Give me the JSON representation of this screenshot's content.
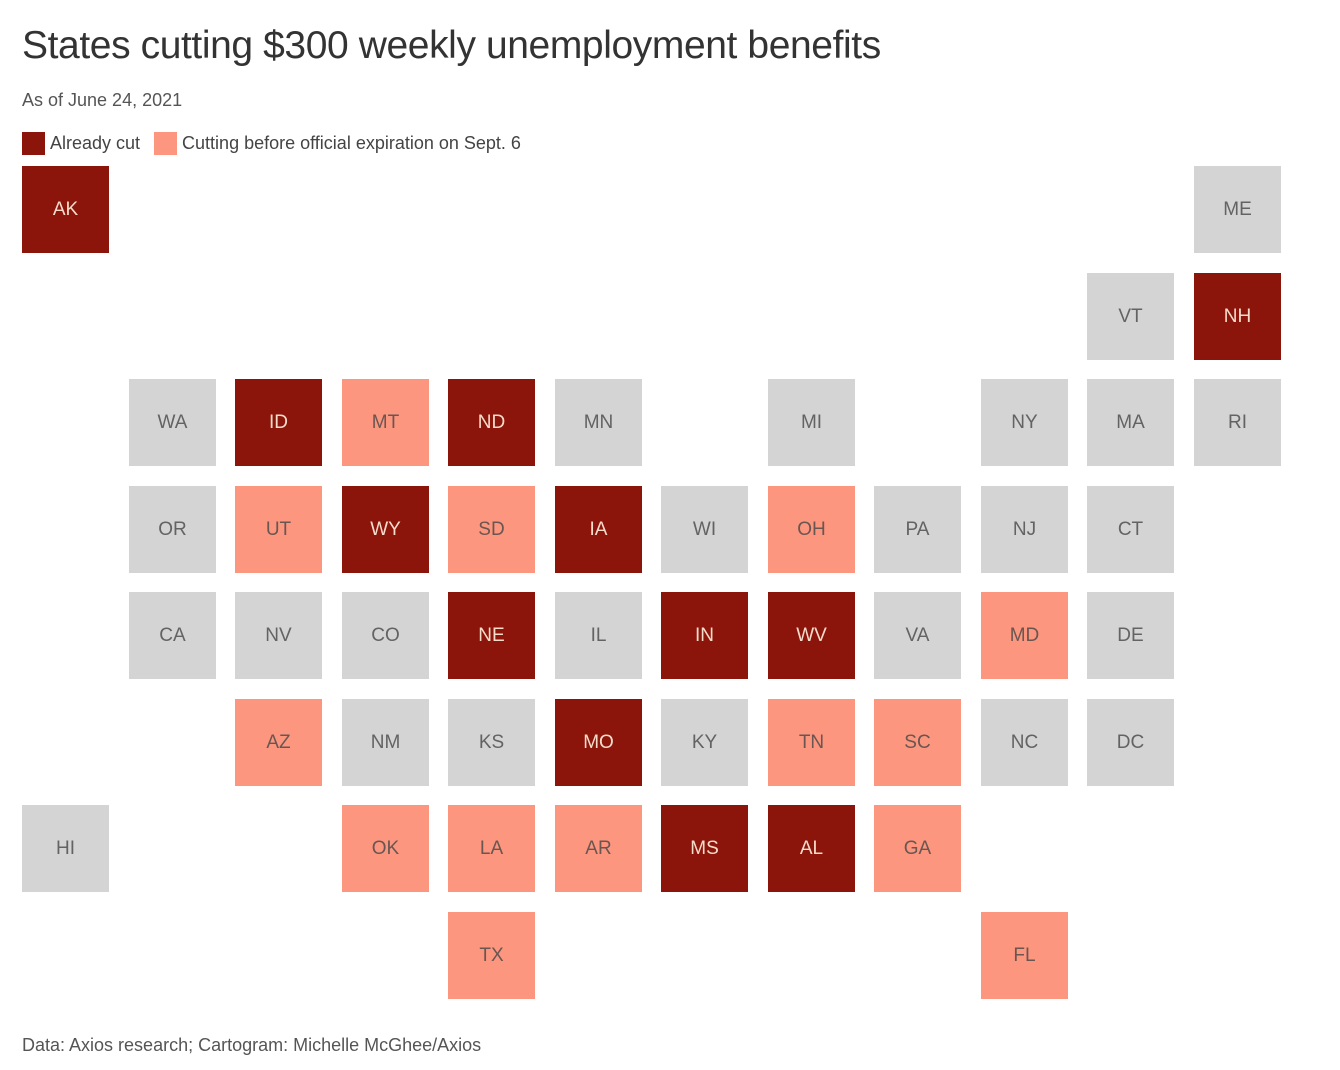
{
  "title": "States cutting $300 weekly unemployment benefits",
  "subtitle": "As of June 24, 2021",
  "legend": {
    "already_cut": {
      "label": "Already cut",
      "color": "#8b150b"
    },
    "cutting": {
      "label": "Cutting before official expiration on Sept. 6",
      "color": "#fc967f"
    },
    "no_change_color": "#d3d4d3"
  },
  "source": "Data: Axios research; Cartogram: Michelle McGhee/Axios",
  "map_data": {
    "type": "tile-cartogram",
    "status_values": {
      "cut": "Already cut",
      "cutting": "Cutting before official expiration on Sept. 6",
      "none": ""
    },
    "states": [
      {
        "abbr": "AK",
        "status": "cut",
        "row": 0,
        "col": 0
      },
      {
        "abbr": "ME",
        "status": "none",
        "row": 0,
        "col": 11
      },
      {
        "abbr": "VT",
        "status": "none",
        "row": 1,
        "col": 10
      },
      {
        "abbr": "NH",
        "status": "cut",
        "row": 1,
        "col": 11
      },
      {
        "abbr": "WA",
        "status": "none",
        "row": 2,
        "col": 1
      },
      {
        "abbr": "ID",
        "status": "cut",
        "row": 2,
        "col": 2
      },
      {
        "abbr": "MT",
        "status": "cutting",
        "row": 2,
        "col": 3
      },
      {
        "abbr": "ND",
        "status": "cut",
        "row": 2,
        "col": 4
      },
      {
        "abbr": "MN",
        "status": "none",
        "row": 2,
        "col": 5
      },
      {
        "abbr": "MI",
        "status": "none",
        "row": 2,
        "col": 7
      },
      {
        "abbr": "NY",
        "status": "none",
        "row": 2,
        "col": 9
      },
      {
        "abbr": "MA",
        "status": "none",
        "row": 2,
        "col": 10
      },
      {
        "abbr": "RI",
        "status": "none",
        "row": 2,
        "col": 11
      },
      {
        "abbr": "OR",
        "status": "none",
        "row": 3,
        "col": 1
      },
      {
        "abbr": "UT",
        "status": "cutting",
        "row": 3,
        "col": 2
      },
      {
        "abbr": "WY",
        "status": "cut",
        "row": 3,
        "col": 3
      },
      {
        "abbr": "SD",
        "status": "cutting",
        "row": 3,
        "col": 4
      },
      {
        "abbr": "IA",
        "status": "cut",
        "row": 3,
        "col": 5
      },
      {
        "abbr": "WI",
        "status": "none",
        "row": 3,
        "col": 6
      },
      {
        "abbr": "OH",
        "status": "cutting",
        "row": 3,
        "col": 7
      },
      {
        "abbr": "PA",
        "status": "none",
        "row": 3,
        "col": 8
      },
      {
        "abbr": "NJ",
        "status": "none",
        "row": 3,
        "col": 9
      },
      {
        "abbr": "CT",
        "status": "none",
        "row": 3,
        "col": 10
      },
      {
        "abbr": "CA",
        "status": "none",
        "row": 4,
        "col": 1
      },
      {
        "abbr": "NV",
        "status": "none",
        "row": 4,
        "col": 2
      },
      {
        "abbr": "CO",
        "status": "none",
        "row": 4,
        "col": 3
      },
      {
        "abbr": "NE",
        "status": "cut",
        "row": 4,
        "col": 4
      },
      {
        "abbr": "IL",
        "status": "none",
        "row": 4,
        "col": 5
      },
      {
        "abbr": "IN",
        "status": "cut",
        "row": 4,
        "col": 6
      },
      {
        "abbr": "WV",
        "status": "cut",
        "row": 4,
        "col": 7
      },
      {
        "abbr": "VA",
        "status": "none",
        "row": 4,
        "col": 8
      },
      {
        "abbr": "MD",
        "status": "cutting",
        "row": 4,
        "col": 9
      },
      {
        "abbr": "DE",
        "status": "none",
        "row": 4,
        "col": 10
      },
      {
        "abbr": "AZ",
        "status": "cutting",
        "row": 5,
        "col": 2
      },
      {
        "abbr": "NM",
        "status": "none",
        "row": 5,
        "col": 3
      },
      {
        "abbr": "KS",
        "status": "none",
        "row": 5,
        "col": 4
      },
      {
        "abbr": "MO",
        "status": "cut",
        "row": 5,
        "col": 5
      },
      {
        "abbr": "KY",
        "status": "none",
        "row": 5,
        "col": 6
      },
      {
        "abbr": "TN",
        "status": "cutting",
        "row": 5,
        "col": 7
      },
      {
        "abbr": "SC",
        "status": "cutting",
        "row": 5,
        "col": 8
      },
      {
        "abbr": "NC",
        "status": "none",
        "row": 5,
        "col": 9
      },
      {
        "abbr": "DC",
        "status": "none",
        "row": 5,
        "col": 10
      },
      {
        "abbr": "HI",
        "status": "none",
        "row": 6,
        "col": 0
      },
      {
        "abbr": "OK",
        "status": "cutting",
        "row": 6,
        "col": 3
      },
      {
        "abbr": "LA",
        "status": "cutting",
        "row": 6,
        "col": 4
      },
      {
        "abbr": "AR",
        "status": "cutting",
        "row": 6,
        "col": 5
      },
      {
        "abbr": "MS",
        "status": "cut",
        "row": 6,
        "col": 6
      },
      {
        "abbr": "AL",
        "status": "cut",
        "row": 6,
        "col": 7
      },
      {
        "abbr": "GA",
        "status": "cutting",
        "row": 6,
        "col": 8
      },
      {
        "abbr": "TX",
        "status": "cutting",
        "row": 7,
        "col": 4
      },
      {
        "abbr": "FL",
        "status": "cutting",
        "row": 7,
        "col": 9
      }
    ]
  }
}
